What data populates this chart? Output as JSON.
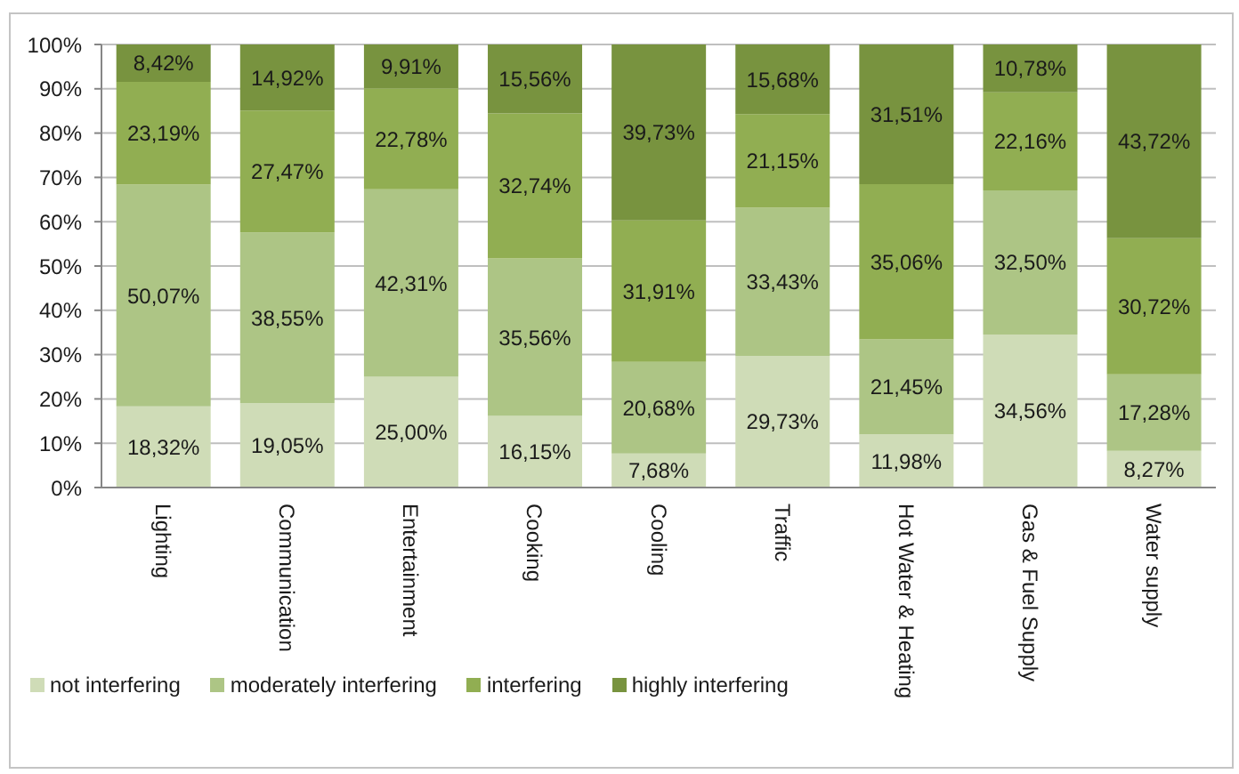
{
  "chart_data": {
    "type": "bar",
    "stacked": true,
    "categories": [
      "Lighting",
      "Communication",
      "Entertainment",
      "Cooking",
      "Cooling",
      "Traffic",
      "Hot Water & Heating",
      "Gas & Fuel Supply",
      "Water supply"
    ],
    "series": [
      {
        "name": "not interfering",
        "color": "#cfdcb7",
        "values": [
          18.32,
          19.05,
          25.0,
          16.15,
          7.68,
          29.73,
          11.98,
          34.56,
          8.27
        ],
        "value_labels": [
          "18,32%",
          "19,05%",
          "25,00%",
          "16,15%",
          "7,68%",
          "29,73%",
          "11,98%",
          "34,56%",
          "8,27%"
        ]
      },
      {
        "name": "moderately interfering",
        "color": "#adc585",
        "values": [
          50.07,
          38.55,
          42.31,
          35.56,
          20.68,
          33.43,
          21.45,
          32.5,
          17.28
        ],
        "value_labels": [
          "50,07%",
          "38,55%",
          "42,31%",
          "35,56%",
          "20,68%",
          "33,43%",
          "21,45%",
          "32,50%",
          "17,28%"
        ]
      },
      {
        "name": "interfering",
        "color": "#91ae52",
        "values": [
          23.19,
          27.47,
          22.78,
          32.74,
          31.91,
          21.15,
          35.06,
          22.16,
          30.72
        ],
        "value_labels": [
          "23,19%",
          "27,47%",
          "22,78%",
          "32,74%",
          "31,91%",
          "21,15%",
          "35,06%",
          "22,16%",
          "30,72%"
        ]
      },
      {
        "name": "highly interfering",
        "color": "#78933f",
        "values": [
          8.42,
          14.92,
          9.91,
          15.56,
          39.73,
          15.68,
          31.51,
          10.78,
          43.72
        ],
        "value_labels": [
          "8,42%",
          "14,92%",
          "9,91%",
          "15,56%",
          "39,73%",
          "15,68%",
          "31,51%",
          "10,78%",
          "43,72%"
        ]
      }
    ],
    "ylim": [
      0,
      100
    ],
    "yticks": [
      {
        "value": 0,
        "label": "0%"
      },
      {
        "value": 10,
        "label": "10%"
      },
      {
        "value": 20,
        "label": "20%"
      },
      {
        "value": 30,
        "label": "30%"
      },
      {
        "value": 40,
        "label": "40%"
      },
      {
        "value": 50,
        "label": "50%"
      },
      {
        "value": 60,
        "label": "60%"
      },
      {
        "value": 70,
        "label": "70%"
      },
      {
        "value": 80,
        "label": "80%"
      },
      {
        "value": 90,
        "label": "90%"
      },
      {
        "value": 100,
        "label": "100%"
      }
    ],
    "grid": "y",
    "legend": "bottom left"
  }
}
